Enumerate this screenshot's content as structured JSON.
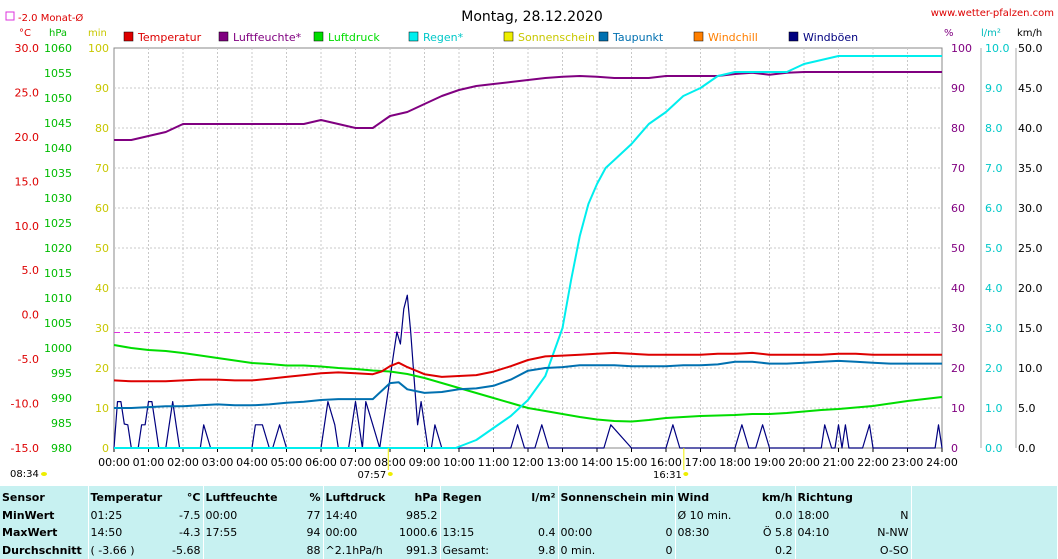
{
  "title": "Montag, 28.12.2020",
  "website": "www.wetter-pfalzen.com",
  "monthly_avg_label": "-2.0 Monat-Ø",
  "colors": {
    "temperature": "#dd0000",
    "humidity": "#800080",
    "pressure": "#00dd00",
    "rain": "#00eeee",
    "sunshine": "#eeee00",
    "dewpoint": "#0070b0",
    "windchill": "#ff7f00",
    "gusts": "#00007f",
    "monthly_avg": "#dd33dd",
    "table_bg": "#c7f1f1"
  },
  "axis_units": {
    "temperature": "°C",
    "pressure": "hPa",
    "sunshine": "min",
    "humidity": "%",
    "rain": "l/m²",
    "wind": "km/h"
  },
  "sun_events": {
    "sunrise": "07:57",
    "sunset": "16:31",
    "current": "08:34"
  },
  "chart_data": {
    "type": "line",
    "title": "Montag, 28.12.2020",
    "x_range": [
      0,
      24
    ],
    "x_ticks": [
      "00:00",
      "01:00",
      "02:00",
      "03:00",
      "04:00",
      "05:00",
      "06:00",
      "07:00",
      "08:00",
      "09:00",
      "10:00",
      "11:00",
      "12:00",
      "13:00",
      "14:00",
      "15:00",
      "16:00",
      "17:00",
      "18:00",
      "19:00",
      "20:00",
      "21:00",
      "22:00",
      "23:00",
      "24:00"
    ],
    "left_axes": {
      "temperature": {
        "range": [
          -15,
          30
        ],
        "ticks": [
          "30.0",
          "25.0",
          "20.0",
          "15.0",
          "10.0",
          "5.0",
          "0.0",
          "-5.0",
          "-10.0",
          "-15.0"
        ]
      },
      "pressure": {
        "range": [
          980,
          1060
        ],
        "ticks": [
          "1060",
          "1055",
          "1050",
          "1045",
          "1040",
          "1035",
          "1030",
          "1025",
          "1020",
          "1015",
          "1010",
          "1005",
          "1000",
          "995",
          "990",
          "985",
          "980"
        ]
      },
      "sunshine": {
        "range": [
          0,
          100
        ],
        "ticks": [
          "100",
          "90",
          "80",
          "70",
          "60",
          "50",
          "40",
          "30",
          "20",
          "10",
          "0"
        ]
      }
    },
    "right_axes": {
      "humidity": {
        "range": [
          0,
          100
        ],
        "ticks": [
          "100",
          "90",
          "80",
          "70",
          "60",
          "50",
          "40",
          "30",
          "20",
          "10",
          "0"
        ]
      },
      "rain": {
        "range": [
          0,
          10
        ],
        "ticks": [
          "10.0",
          "9.0",
          "8.0",
          "7.0",
          "6.0",
          "5.0",
          "4.0",
          "3.0",
          "2.0",
          "1.0",
          "0.0"
        ]
      },
      "wind": {
        "range": [
          0,
          50
        ],
        "ticks": [
          "50.0",
          "45.0",
          "40.0",
          "35.0",
          "30.0",
          "25.0",
          "20.0",
          "15.0",
          "10.0",
          "5.0",
          "0.0"
        ]
      }
    },
    "grid": true,
    "legend_position": "top",
    "monthly_avg_temperature": -2.0,
    "series": [
      {
        "name": "Temperatur",
        "axis": "temperature",
        "color": "#dd0000",
        "x": [
          0,
          0.5,
          1,
          1.5,
          2,
          2.5,
          3,
          3.5,
          4,
          4.5,
          5,
          5.5,
          6,
          6.5,
          7,
          7.5,
          7.75,
          8,
          8.25,
          8.5,
          9,
          9.5,
          10,
          10.5,
          11,
          11.5,
          12,
          12.5,
          13,
          13.5,
          14,
          14.5,
          15,
          15.5,
          16,
          16.5,
          17,
          17.5,
          18,
          18.5,
          19,
          19.5,
          20,
          20.5,
          21,
          21.5,
          22,
          22.5,
          23,
          23.5,
          24
        ],
        "y": [
          -7.4,
          -7.5,
          -7.5,
          -7.5,
          -7.4,
          -7.3,
          -7.3,
          -7.4,
          -7.4,
          -7.2,
          -7.0,
          -6.8,
          -6.6,
          -6.5,
          -6.6,
          -6.7,
          -6.4,
          -5.8,
          -5.4,
          -5.9,
          -6.7,
          -7.0,
          -6.9,
          -6.8,
          -6.4,
          -5.8,
          -5.1,
          -4.7,
          -4.6,
          -4.5,
          -4.4,
          -4.3,
          -4.4,
          -4.5,
          -4.5,
          -4.5,
          -4.5,
          -4.4,
          -4.4,
          -4.3,
          -4.5,
          -4.5,
          -4.5,
          -4.5,
          -4.4,
          -4.4,
          -4.5,
          -4.5,
          -4.5,
          -4.5,
          -4.5
        ]
      },
      {
        "name": "Luftfeuchte*",
        "axis": "humidity",
        "color": "#800080",
        "x": [
          0,
          0.5,
          1,
          1.5,
          2,
          2.5,
          3,
          3.5,
          4,
          4.5,
          5,
          5.5,
          6,
          6.5,
          7,
          7.5,
          8,
          8.5,
          9,
          9.5,
          10,
          10.5,
          11,
          11.5,
          12,
          12.5,
          13,
          13.5,
          14,
          14.5,
          15,
          15.5,
          16,
          16.5,
          17,
          17.5,
          18,
          18.5,
          19,
          19.5,
          20,
          20.5,
          21,
          21.5,
          22,
          22.5,
          23,
          23.5,
          24
        ],
        "y": [
          77,
          77,
          78,
          79,
          81,
          81,
          81,
          81,
          81,
          81,
          81,
          81,
          82,
          81,
          80,
          80,
          83,
          84,
          86,
          88,
          89.5,
          90.5,
          91,
          91.5,
          92,
          92.5,
          92.8,
          93,
          92.8,
          92.5,
          92.5,
          92.5,
          93,
          93,
          93,
          93,
          93.5,
          93.8,
          93.3,
          93.8,
          94,
          94,
          94,
          94,
          94,
          94,
          94,
          94,
          94
        ]
      },
      {
        "name": "Luftdruck",
        "axis": "pressure",
        "color": "#00dd00",
        "x": [
          0,
          0.5,
          1,
          1.5,
          2,
          2.5,
          3,
          3.5,
          4,
          4.5,
          5,
          5.5,
          6,
          6.5,
          7,
          7.5,
          8,
          8.5,
          9,
          9.5,
          10,
          10.5,
          11,
          11.5,
          12,
          12.5,
          13,
          13.5,
          14,
          14.5,
          15,
          15.5,
          16,
          16.5,
          17,
          17.5,
          18,
          18.5,
          19,
          19.5,
          20,
          20.5,
          21,
          21.5,
          22,
          22.5,
          23,
          23.5,
          24
        ],
        "y": [
          1000.6,
          1000.0,
          999.6,
          999.4,
          999.0,
          998.5,
          998.0,
          997.5,
          997.0,
          996.8,
          996.5,
          996.5,
          996.3,
          996.0,
          995.8,
          995.5,
          995.3,
          994.8,
          994.0,
          993.0,
          992.0,
          991.0,
          990.0,
          989.0,
          988.0,
          987.4,
          986.8,
          986.2,
          985.7,
          985.4,
          985.3,
          985.6,
          986.0,
          986.2,
          986.4,
          986.5,
          986.6,
          986.8,
          986.8,
          987.0,
          987.3,
          987.6,
          987.8,
          988.1,
          988.4,
          988.9,
          989.4,
          989.8,
          990.2
        ]
      },
      {
        "name": "Regen*",
        "axis": "rain",
        "color": "#00eeee",
        "x": [
          0,
          9.9,
          10.5,
          11,
          11.5,
          12,
          12.5,
          13,
          13.25,
          13.5,
          13.75,
          14,
          14.25,
          14.5,
          15,
          15.5,
          16,
          16.5,
          17,
          17.5,
          18,
          18.5,
          19,
          19.5,
          20,
          20.5,
          21,
          21.5,
          22,
          22.5,
          23,
          23.5,
          24
        ],
        "y": [
          0,
          0,
          0.2,
          0.5,
          0.8,
          1.2,
          1.8,
          3.0,
          4.2,
          5.3,
          6.1,
          6.6,
          7.0,
          7.2,
          7.6,
          8.1,
          8.4,
          8.8,
          9.0,
          9.3,
          9.4,
          9.4,
          9.4,
          9.4,
          9.6,
          9.7,
          9.8,
          9.8,
          9.8,
          9.8,
          9.8,
          9.8,
          9.8
        ]
      },
      {
        "name": "Sonnenschein",
        "axis": "sunshine",
        "color": "#eeee00",
        "x": [],
        "y": []
      },
      {
        "name": "Taupunkt",
        "axis": "temperature",
        "color": "#0070b0",
        "x": [
          0,
          0.5,
          1,
          1.5,
          2,
          2.5,
          3,
          3.5,
          4,
          4.5,
          5,
          5.5,
          6,
          6.5,
          7,
          7.5,
          7.75,
          8,
          8.25,
          8.5,
          9,
          9.5,
          10,
          10.5,
          11,
          11.5,
          12,
          12.5,
          13,
          13.5,
          14,
          14.5,
          15,
          15.5,
          16,
          16.5,
          17,
          17.5,
          18,
          18.5,
          19,
          19.5,
          20,
          20.5,
          21,
          21.5,
          22,
          22.5,
          23,
          23.5,
          24
        ],
        "y": [
          -10.5,
          -10.5,
          -10.4,
          -10.3,
          -10.3,
          -10.2,
          -10.1,
          -10.2,
          -10.2,
          -10.1,
          -9.9,
          -9.8,
          -9.6,
          -9.5,
          -9.5,
          -9.5,
          -8.6,
          -7.7,
          -7.6,
          -8.4,
          -8.8,
          -8.7,
          -8.4,
          -8.3,
          -8.0,
          -7.3,
          -6.3,
          -6.0,
          -5.9,
          -5.7,
          -5.7,
          -5.7,
          -5.8,
          -5.8,
          -5.8,
          -5.7,
          -5.7,
          -5.6,
          -5.3,
          -5.3,
          -5.5,
          -5.5,
          -5.4,
          -5.3,
          -5.2,
          -5.3,
          -5.4,
          -5.5,
          -5.5,
          -5.5,
          -5.5
        ]
      },
      {
        "name": "Windchill",
        "axis": "temperature",
        "color": "#ff7f00",
        "x": [],
        "y": []
      },
      {
        "name": "Windböen",
        "axis": "wind",
        "color": "#00007f",
        "x": [
          0,
          0.1,
          0.2,
          0.3,
          0.4,
          0.5,
          0.6,
          0.7,
          0.8,
          0.9,
          1.0,
          1.1,
          1.2,
          1.3,
          1.4,
          1.5,
          1.6,
          1.7,
          1.8,
          1.9,
          2.0,
          2.5,
          2.6,
          2.8,
          3.0,
          4.0,
          4.1,
          4.3,
          4.5,
          4.6,
          4.8,
          5.0,
          6.0,
          6.2,
          6.4,
          6.5,
          6.6,
          6.8,
          7.0,
          7.2,
          7.3,
          7.5,
          7.7,
          7.8,
          7.9,
          8.0,
          8.1,
          8.2,
          8.3,
          8.4,
          8.5,
          8.6,
          8.7,
          8.8,
          8.9,
          9.0,
          9.1,
          9.2,
          9.3,
          9.5,
          11.5,
          11.7,
          11.9,
          12.2,
          12.4,
          12.6,
          12.8,
          13,
          14,
          14.2,
          14.4,
          15,
          16,
          16.2,
          16.4,
          17,
          18,
          18.2,
          18.4,
          18.6,
          18.8,
          19,
          19.2,
          19.4,
          20,
          20.5,
          20.6,
          20.8,
          20.9,
          21,
          21.1,
          21.2,
          21.3,
          21.4,
          21.5,
          21.7,
          21.9,
          22,
          23.8,
          23.9,
          24
        ],
        "y": [
          0,
          5.8,
          5.8,
          3,
          2.9,
          0,
          0,
          0,
          2.9,
          2.9,
          5.8,
          5.8,
          2.9,
          0,
          0,
          0,
          2.9,
          5.8,
          2.9,
          0,
          0,
          0,
          2.9,
          0,
          0,
          0,
          2.9,
          2.9,
          0,
          0,
          2.9,
          0,
          0,
          5.8,
          2.9,
          0,
          0,
          0,
          5.8,
          0,
          5.8,
          2.9,
          0,
          2.9,
          5.8,
          8.7,
          11.6,
          14.5,
          13,
          17.4,
          19.1,
          14.5,
          8.7,
          2.9,
          5.8,
          2.9,
          0,
          0,
          2.9,
          0,
          0,
          2.9,
          0,
          0,
          2.9,
          0,
          0,
          0,
          0,
          0,
          2.9,
          0,
          0,
          2.9,
          0,
          0,
          0,
          2.9,
          0,
          0,
          2.9,
          0,
          0,
          0,
          0,
          0,
          2.9,
          0,
          0,
          2.9,
          0,
          2.9,
          0,
          0,
          0,
          0,
          2.9,
          0,
          0,
          2.9,
          0
        ]
      }
    ]
  },
  "legend": [
    {
      "label": "Temperatur",
      "color": "#dd0000"
    },
    {
      "label": "Luftfeuchte*",
      "color": "#800080"
    },
    {
      "label": "Luftdruck",
      "color": "#00dd00"
    },
    {
      "label": "Regen*",
      "color": "#00eeee"
    },
    {
      "label": "Sonnenschein",
      "color": "#eeee00"
    },
    {
      "label": "Taupunkt",
      "color": "#0070b0"
    },
    {
      "label": "Windchill",
      "color": "#ff7f00"
    },
    {
      "label": "Windböen",
      "color": "#00007f"
    }
  ],
  "table": {
    "headers": {
      "sensor": "Sensor",
      "temperature": "Temperatur",
      "temperature_unit": "°C",
      "humidity": "Luftfeuchte",
      "humidity_unit": "%",
      "pressure": "Luftdruck",
      "pressure_unit": "hPa",
      "rain": "Regen",
      "rain_unit": "l/m²",
      "sunshine": "Sonnenschein min",
      "wind": "Wind",
      "wind_unit": "km/h",
      "direction": "Richtung"
    },
    "rows": [
      {
        "label": "MinWert",
        "temp_time": "01:25",
        "temp_val": "-7.5",
        "hum_time": "00:00",
        "hum_val": "77",
        "pres_time": "14:40",
        "pres_val": "985.2",
        "rain_time": "",
        "rain_val": "",
        "sun_time": "",
        "sun_val": "",
        "wind_time": "Ø 10 min.",
        "wind_val": "0.0",
        "dir_time": "18:00",
        "dir_val": "N"
      },
      {
        "label": "MaxWert",
        "temp_time": "14:50",
        "temp_val": "-4.3",
        "hum_time": "17:55",
        "hum_val": "94",
        "pres_time": "00:00",
        "pres_val": "1000.6",
        "rain_time": "13:15",
        "rain_val": "0.4",
        "sun_time": "00:00",
        "sun_val": "0",
        "wind_time": "08:30",
        "wind_val": "Ö 5.8",
        "dir_time": "04:10",
        "dir_val": "N-NW"
      },
      {
        "label": "Durchschnitt",
        "temp_time": "( -3.66 )",
        "temp_val": "-5.68",
        "hum_time": "",
        "hum_val": "88",
        "pres_time": "^2.1hPa/h",
        "pres_val": "991.3",
        "rain_time": "Gesamt:",
        "rain_val": "9.8",
        "sun_time": "0 min.",
        "sun_val": "0",
        "wind_time": "",
        "wind_val": "0.2",
        "dir_time": "",
        "dir_val": "O-SO"
      }
    ]
  }
}
